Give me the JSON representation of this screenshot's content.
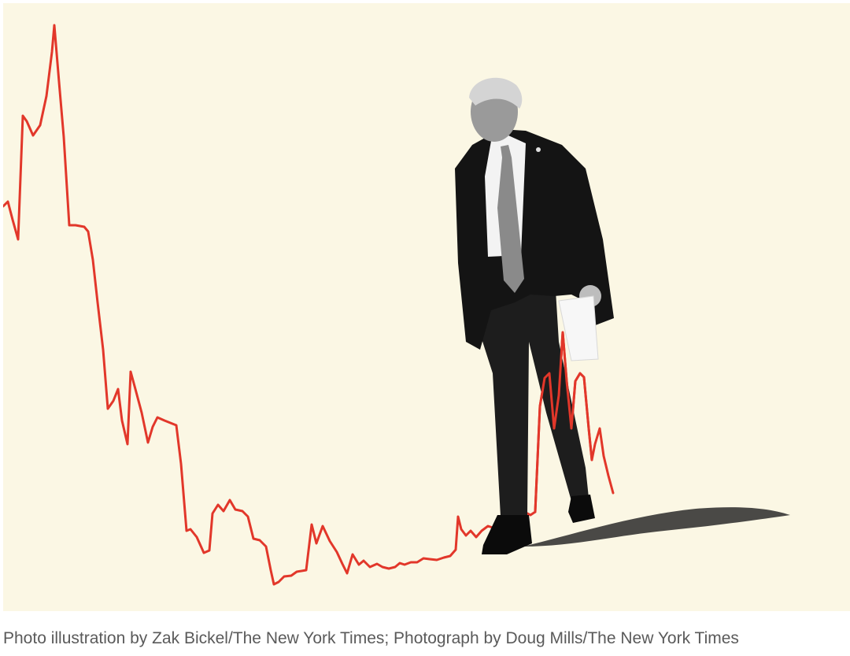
{
  "caption": {
    "text": "Photo illustration by Zak Bickel/The New York Times; Photograph by Doug Mills/The New York Times"
  },
  "illustration": {
    "background_color": "#fbf7e4",
    "line_color": "#e2372a",
    "figure_description_icon": "man-in-suit-walking-figure"
  }
}
